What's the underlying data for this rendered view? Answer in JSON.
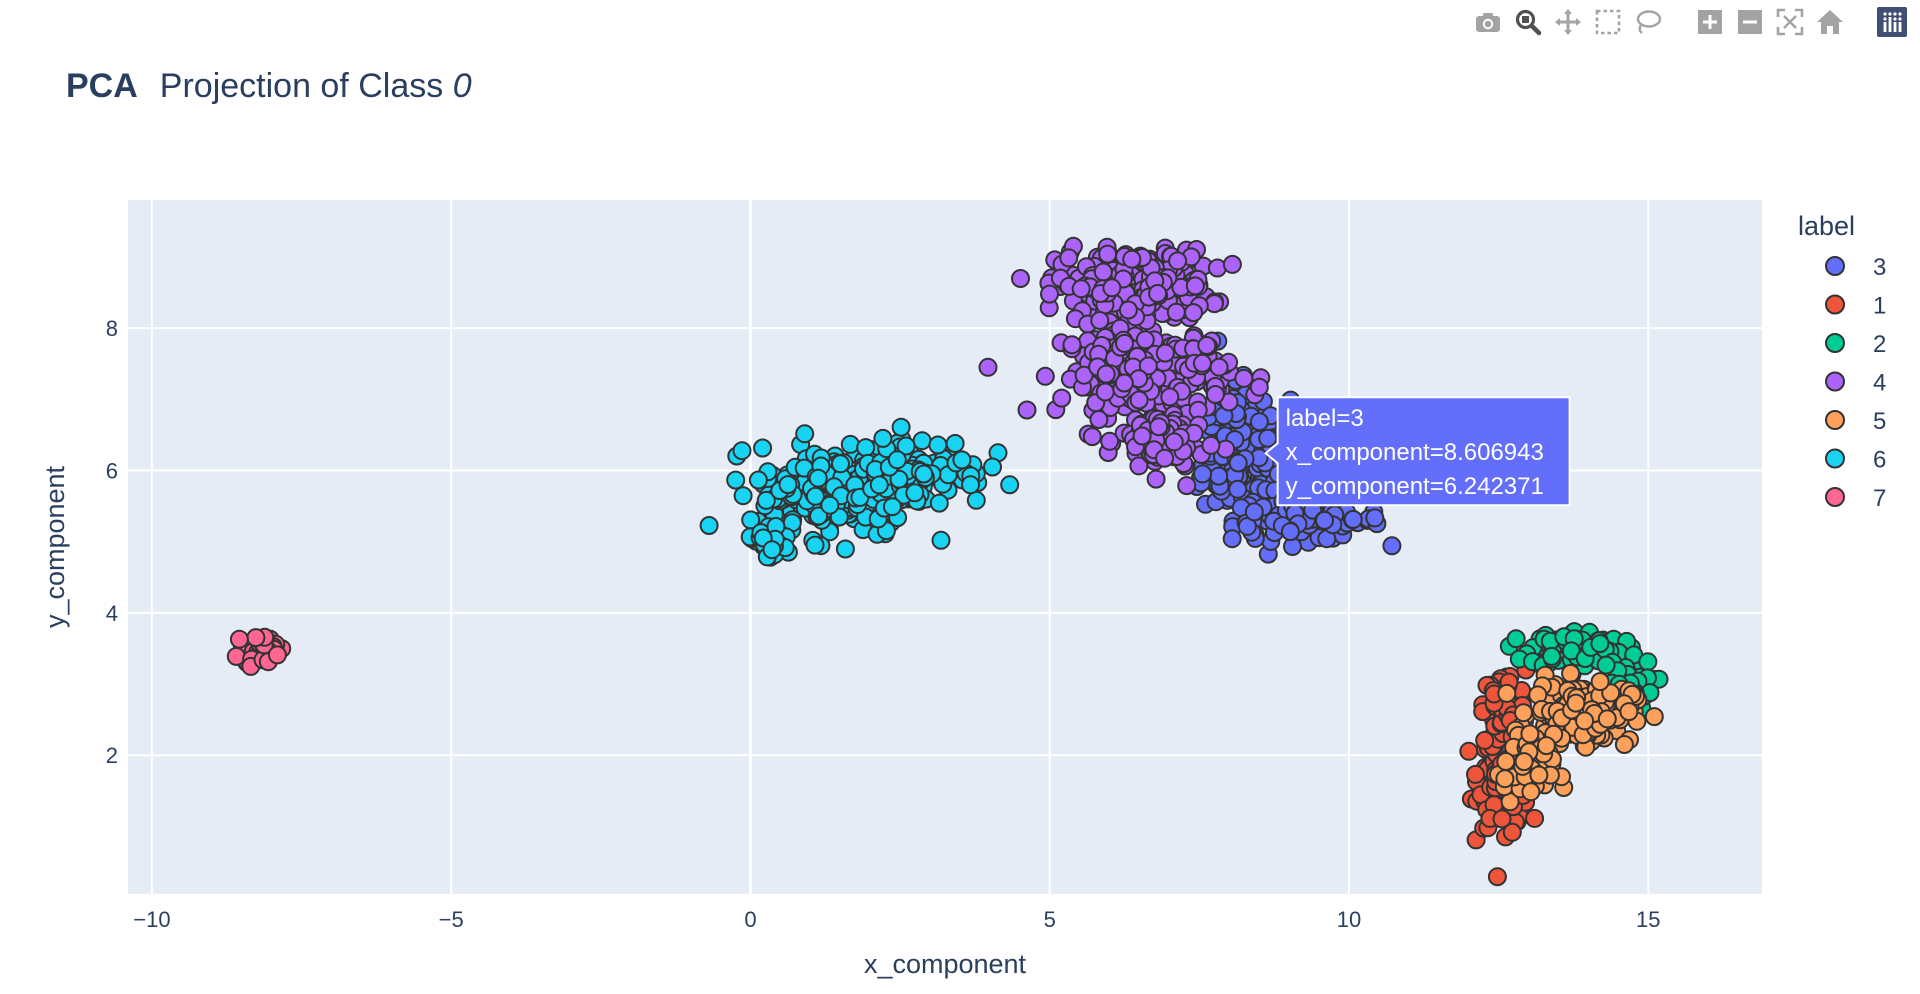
{
  "modebar": {
    "buttons": [
      "camera-icon",
      "zoom-icon",
      "pan-icon",
      "box-select-icon",
      "lasso-select-icon",
      "zoom-in-icon",
      "zoom-out-icon",
      "autoscale-icon",
      "home-icon",
      "plotly-logo-icon"
    ],
    "accent": "#7f7f7f",
    "logo_color": "#3f4f75"
  },
  "chart_data": {
    "type": "scatter",
    "title_bold": "PCA",
    "title_rest": "Projection of Class ",
    "title_italic": "0",
    "xlabel": "x_component",
    "ylabel": "y_component",
    "xlim": [
      -10.4,
      16.9
    ],
    "ylim": [
      0.05,
      9.8
    ],
    "xticks": [
      -10,
      -5,
      0,
      5,
      10,
      15
    ],
    "xtick_labels": [
      "−10",
      "−5",
      "0",
      "5",
      "10",
      "15"
    ],
    "yticks": [
      2,
      4,
      6,
      8
    ],
    "ytick_labels": [
      "2",
      "4",
      "6",
      "8"
    ],
    "grid": true,
    "plot_bg": "#e5ecf6",
    "legend": {
      "title": "label",
      "placement": "right"
    },
    "series": [
      {
        "name": "3",
        "color": "#636efa",
        "clusters": [
          {
            "cx": 8.6,
            "cy": 6.1,
            "sx": 0.75,
            "sy": 0.55,
            "n": 260
          },
          {
            "cx": 9.3,
            "cy": 5.3,
            "sx": 0.9,
            "sy": 0.2,
            "n": 90
          },
          {
            "cx": 7.9,
            "cy": 6.9,
            "sx": 0.3,
            "sy": 0.4,
            "n": 40
          }
        ]
      },
      {
        "name": "1",
        "color": "#EF553B",
        "clusters": [
          {
            "cx": 12.6,
            "cy": 1.7,
            "sx": 0.3,
            "sy": 0.5,
            "n": 180
          },
          {
            "cx": 12.6,
            "cy": 2.7,
            "sx": 0.25,
            "sy": 0.35,
            "n": 60
          }
        ]
      },
      {
        "name": "2",
        "color": "#00cc96",
        "clusters": [
          {
            "cx": 13.8,
            "cy": 3.5,
            "sx": 0.55,
            "sy": 0.18,
            "n": 110
          },
          {
            "cx": 14.6,
            "cy": 3.0,
            "sx": 0.35,
            "sy": 0.25,
            "n": 40
          }
        ]
      },
      {
        "name": "4",
        "color": "#ab63fa",
        "clusters": [
          {
            "cx": 6.4,
            "cy": 8.6,
            "sx": 0.9,
            "sy": 0.35,
            "n": 260
          },
          {
            "cx": 6.6,
            "cy": 7.4,
            "sx": 1.0,
            "sy": 0.45,
            "n": 220
          },
          {
            "cx": 6.9,
            "cy": 6.4,
            "sx": 0.5,
            "sy": 0.35,
            "n": 90
          }
        ]
      },
      {
        "name": "5",
        "color": "#FFA15A",
        "clusters": [
          {
            "cx": 13.9,
            "cy": 2.6,
            "sx": 0.6,
            "sy": 0.3,
            "n": 170
          },
          {
            "cx": 13.0,
            "cy": 1.8,
            "sx": 0.3,
            "sy": 0.35,
            "n": 50
          }
        ]
      },
      {
        "name": "6",
        "color": "#19d3f3",
        "clusters": [
          {
            "cx": 1.4,
            "cy": 5.7,
            "sx": 0.9,
            "sy": 0.45,
            "n": 220
          },
          {
            "cx": 2.8,
            "cy": 6.0,
            "sx": 0.8,
            "sy": 0.35,
            "n": 110
          },
          {
            "cx": 0.3,
            "cy": 5.0,
            "sx": 0.3,
            "sy": 0.2,
            "n": 30
          }
        ]
      },
      {
        "name": "7",
        "color": "#FF6692",
        "clusters": [
          {
            "cx": -8.2,
            "cy": 3.5,
            "sx": 0.2,
            "sy": 0.12,
            "n": 60
          }
        ]
      }
    ],
    "hover": {
      "lines": [
        "label=3",
        "x_component=8.606943",
        "y_component=6.242371"
      ],
      "x": 8.606943,
      "y": 6.242371,
      "color": "#636efa"
    }
  }
}
